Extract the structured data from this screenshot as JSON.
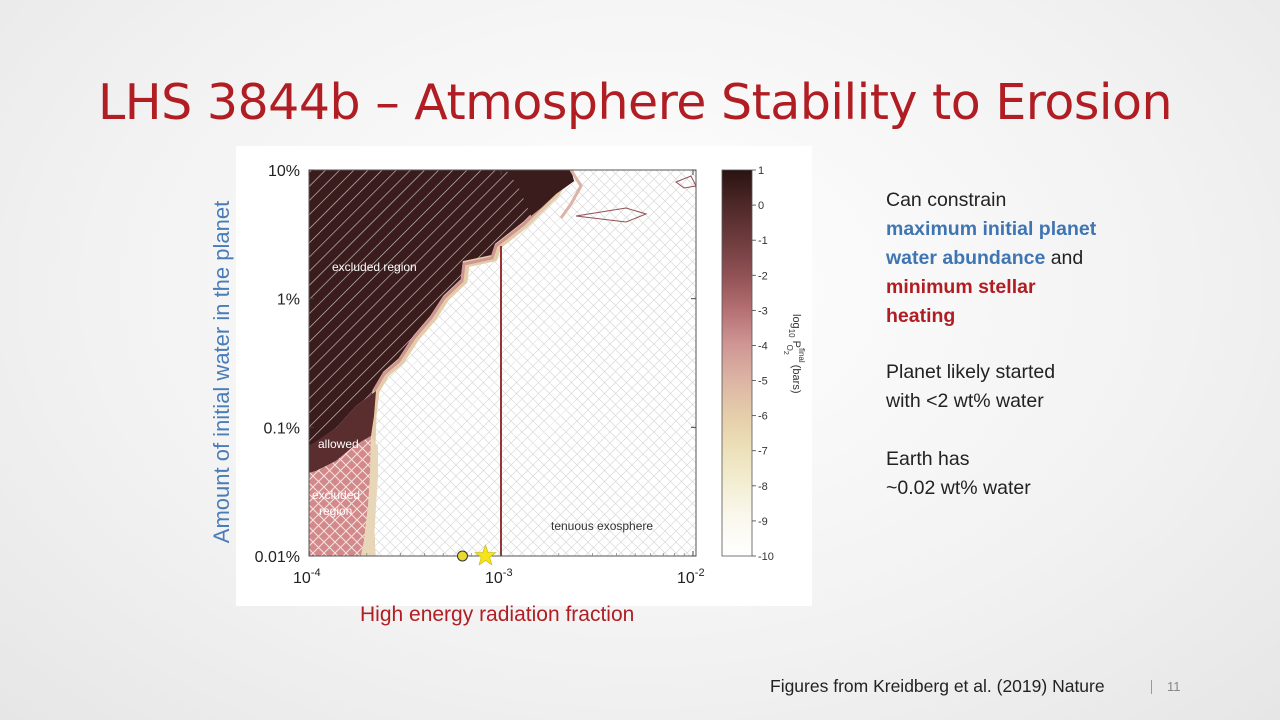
{
  "slide": {
    "title": "LHS 3844b – Atmosphere Stability to Erosion",
    "footer": "Figures from Kreidberg et al. (2019) Nature",
    "page_number": "11"
  },
  "bullets": {
    "p1_line1": "Can constrain",
    "p1_bold_blue_1": "maximum initial planet",
    "p1_bold_blue_2": "water abundance",
    "p1_and": " and",
    "p1_bold_red_1": "minimum stellar",
    "p1_bold_red_2": "heating",
    "p2_line1": "Planet likely started",
    "p2_line2": "with <2 wt% water",
    "p3_line1": "Earth has",
    "p3_line2": "~0.02 wt% water"
  },
  "chart_data": {
    "type": "heatmap",
    "xlabel": "High energy radiation fraction",
    "ylabel": "Amount of initial water in the planet",
    "x_scale": "log",
    "y_scale": "log",
    "xlim": [
      0.0001,
      0.012
    ],
    "ylim": [
      0.0001,
      0.1
    ],
    "x_ticks": [
      {
        "base": "10",
        "exp": "-4",
        "value": 0.0001
      },
      {
        "base": "10",
        "exp": "-3",
        "value": 0.001
      },
      {
        "base": "10",
        "exp": "-2",
        "value": 0.01
      }
    ],
    "y_ticks": [
      {
        "label": "10%",
        "value": 0.1
      },
      {
        "label": "1%",
        "value": 0.01
      },
      {
        "label": "0.1%",
        "value": 0.001
      },
      {
        "label": "0.01%",
        "value": 0.0001
      }
    ],
    "colorbar": {
      "label_text": "log",
      "label_sub": "10",
      "label_p": "P",
      "label_sup": "final",
      "label_o": "O",
      "label_o_sub": "2",
      "label_units": "(bars)",
      "range": [
        -10,
        1
      ],
      "ticks": [
        "1",
        "0",
        "-1",
        "-2",
        "-3",
        "-4",
        "-5",
        "-6",
        "-7",
        "-8",
        "-9",
        "-10"
      ],
      "colors": [
        "#2a1212",
        "#4e2828",
        "#6e3b3d",
        "#8f5154",
        "#b46f72",
        "#cf9593",
        "#dcb3a4",
        "#e4cca9",
        "#ece0b8",
        "#f3edd2",
        "#faf8ee",
        "#ffffff"
      ]
    },
    "regions": [
      {
        "label": "excluded region"
      },
      {
        "label": "allowed"
      },
      {
        "label_1": "excluded",
        "label_2": "region"
      },
      {
        "label": "tenuous exosphere"
      }
    ],
    "markers": [
      {
        "shape": "circle",
        "x": 0.00063,
        "y": 0.0001,
        "color": "#e8d830"
      },
      {
        "shape": "star",
        "x": 0.00083,
        "y": 0.0001,
        "color": "#f5e31b"
      }
    ],
    "exosphere_boundary_x": 0.001
  }
}
